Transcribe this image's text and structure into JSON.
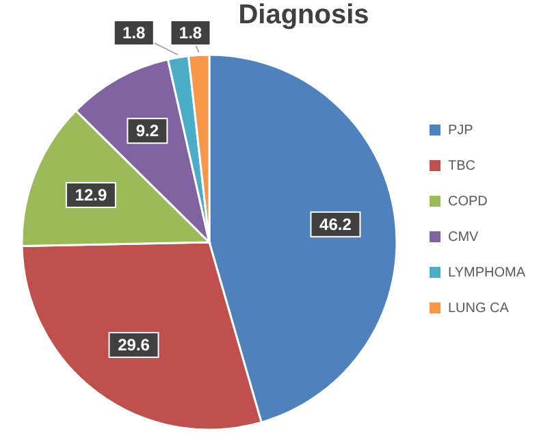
{
  "chart_data": {
    "type": "pie",
    "title": "Diagnosis",
    "categories": [
      "PJP",
      "TBC",
      "COPD",
      "CMV",
      "LYMPHOMA",
      "LUNG CA"
    ],
    "values": [
      46.2,
      29.6,
      12.9,
      9.2,
      1.8,
      1.8
    ],
    "colors": [
      "#4f81bd",
      "#c0504d",
      "#9bbb59",
      "#8064a2",
      "#4bacc6",
      "#f79646"
    ],
    "data_labels": true,
    "legend": "right"
  }
}
